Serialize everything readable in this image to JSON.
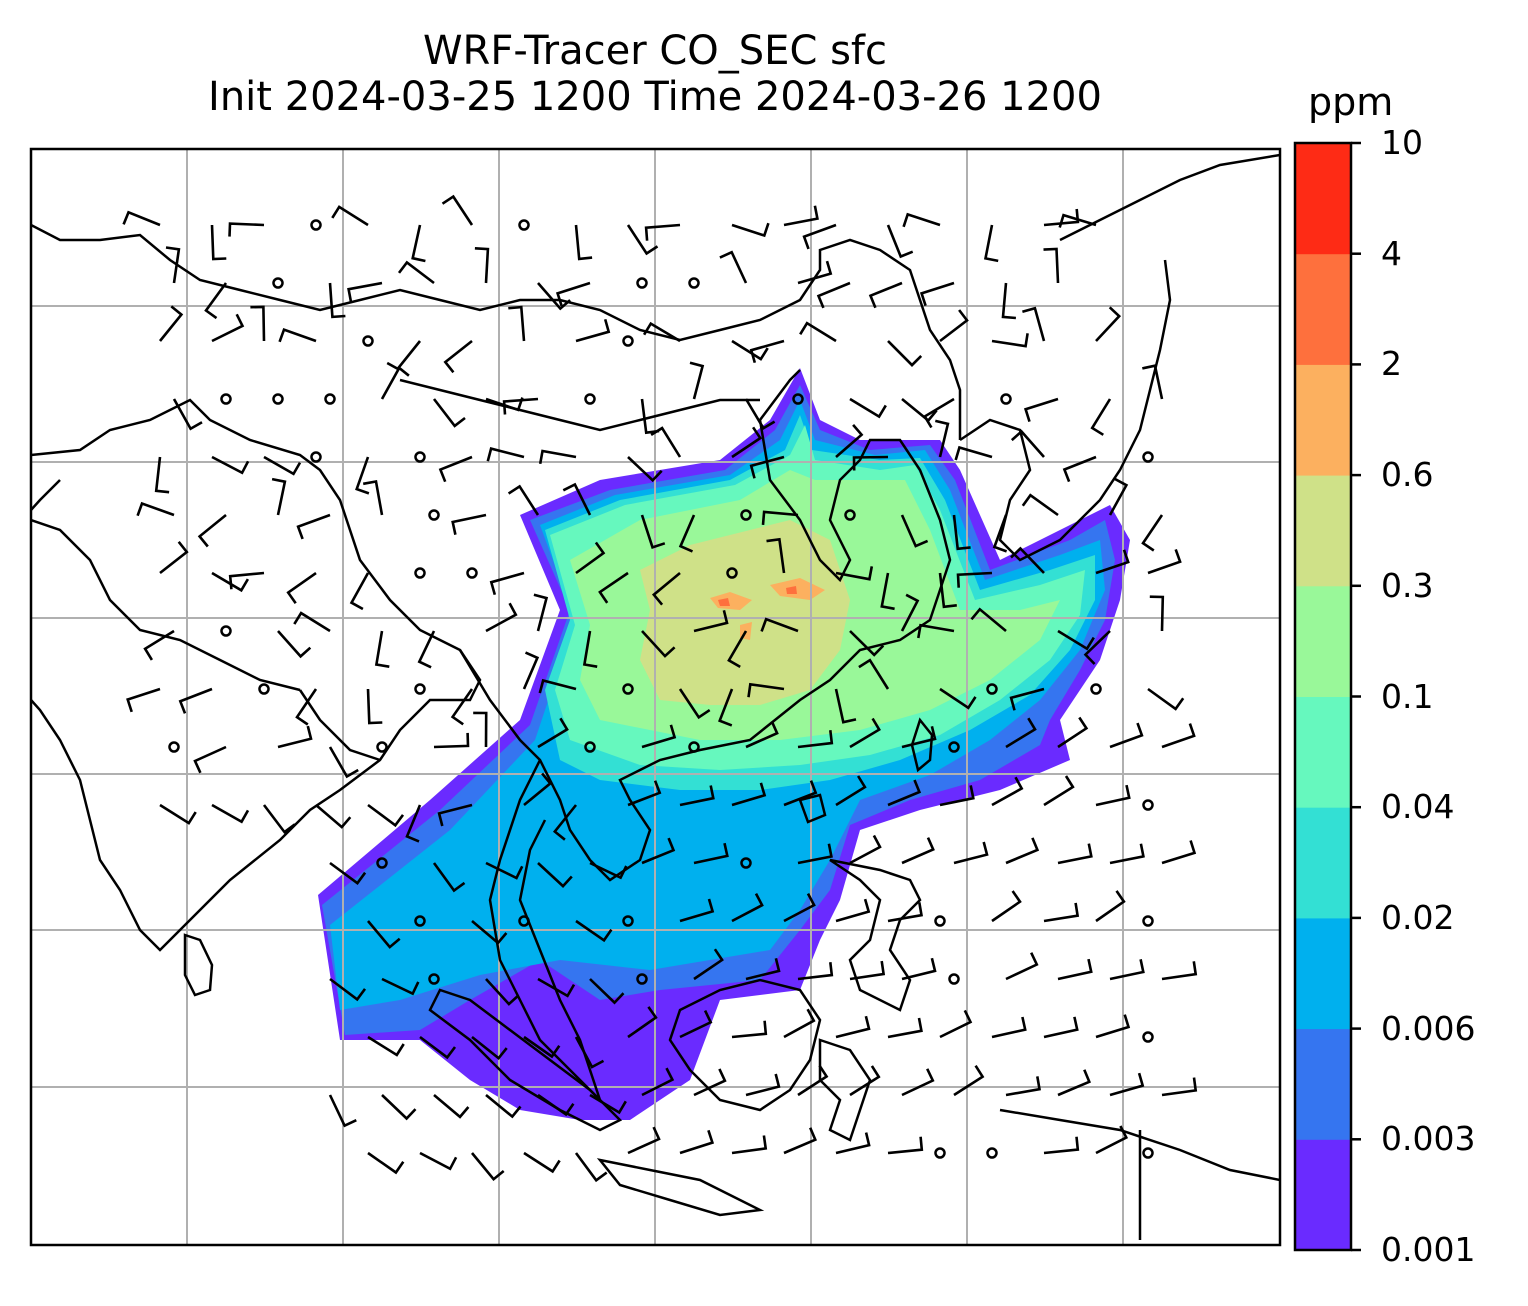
{
  "title": {
    "line1": "WRF-Tracer CO_SEC sfc",
    "line2": "Init 2024-03-25 1200 Time 2024-03-26 1200"
  },
  "colorbar": {
    "unit": "ppm",
    "levels": [
      "0.001",
      "0.003",
      "0.006",
      "0.02",
      "0.04",
      "0.1",
      "0.3",
      "0.6",
      "2",
      "4",
      "10"
    ],
    "colors": [
      "#6a2bff",
      "#3575f0",
      "#00b0ee",
      "#33e0d4",
      "#66f8be",
      "#99f899",
      "#cfe188",
      "#fcb05f",
      "#fe703d",
      "#fe2b15"
    ]
  },
  "map": {
    "field": "CO_SEC",
    "level": "sfc",
    "gridlines": true,
    "overlay": "wind barbs and calm-wind circles"
  }
}
